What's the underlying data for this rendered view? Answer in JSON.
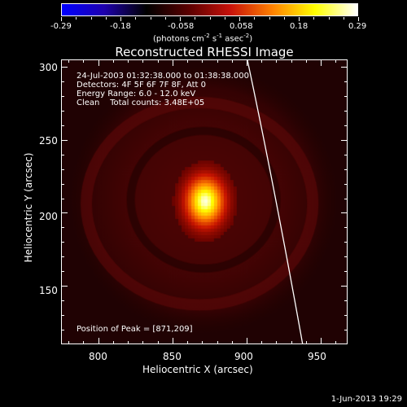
{
  "colorbar": {
    "ticks": [
      "-0.29",
      "-0.18",
      "-0.058",
      "0.058",
      "0.18",
      "0.29"
    ],
    "units_prefix": "(photons cm",
    "units_exp1": "-2",
    "units_mid": " s",
    "units_exp2": "-1",
    "units_mid2": " asec",
    "units_exp3": "-2",
    "units_suffix": ")"
  },
  "title": "Reconstructed RHESSI Image",
  "info": {
    "time": "24-Jul-2003 01:32:38.000 to 01:38:38.000",
    "detectors": "Detectors: 4F 5F 6F 7F 8F, Att 0",
    "energy": "Energy Range: 6.0 - 12.0 keV",
    "clean": "Clean    Total counts: 3.48E+05",
    "peak": "Position of Peak = [871,209]"
  },
  "axes": {
    "xlabel": "Heliocentric X (arcsec)",
    "ylabel": "Heliocentric Y (arcsec)",
    "x_ticks": [
      "800",
      "850",
      "900",
      "950"
    ],
    "y_ticks": [
      "300",
      "250",
      "200",
      "150"
    ],
    "x_range": [
      775,
      968
    ],
    "y_range": [
      110,
      305
    ]
  },
  "map": {
    "peak_x": 871,
    "peak_y": 209,
    "colormap": [
      "#0000ff",
      "#1e00ad",
      "#000000",
      "#5a0000",
      "#c8120a",
      "#ff8200",
      "#ffff00",
      "#ffffff"
    ]
  },
  "timestamp": "1-Jun-2013 19:29"
}
